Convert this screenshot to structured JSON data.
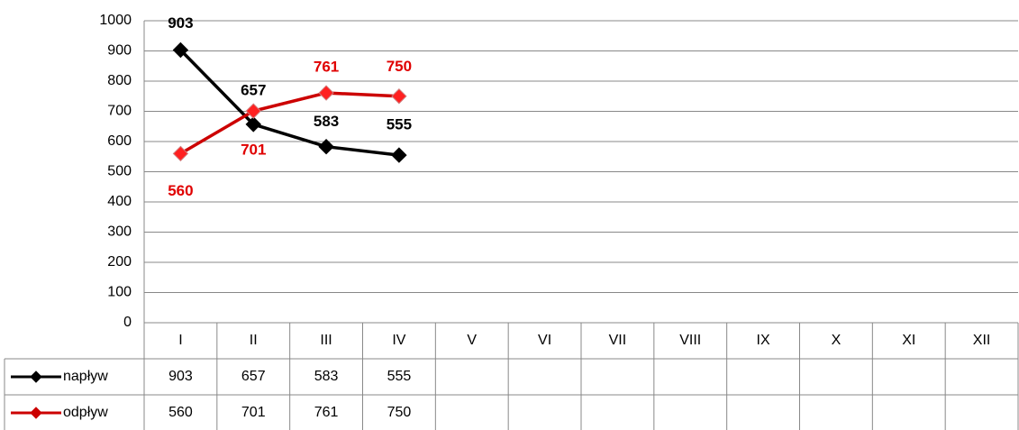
{
  "chart_data": {
    "type": "line",
    "categories": [
      "I",
      "II",
      "III",
      "IV",
      "V",
      "VI",
      "VII",
      "VIII",
      "IX",
      "X",
      "XI",
      "XII"
    ],
    "series": [
      {
        "name": "napływ",
        "color": "#000000",
        "values": [
          903,
          657,
          583,
          555,
          null,
          null,
          null,
          null,
          null,
          null,
          null,
          null
        ]
      },
      {
        "name": "odpływ",
        "color": "#cc0000",
        "values": [
          560,
          701,
          761,
          750,
          null,
          null,
          null,
          null,
          null,
          null,
          null,
          null
        ]
      }
    ],
    "ylim": [
      0,
      1000
    ],
    "yticks": [
      0,
      100,
      200,
      300,
      400,
      500,
      600,
      700,
      800,
      900,
      1000
    ],
    "grid": true,
    "data_table": true
  }
}
